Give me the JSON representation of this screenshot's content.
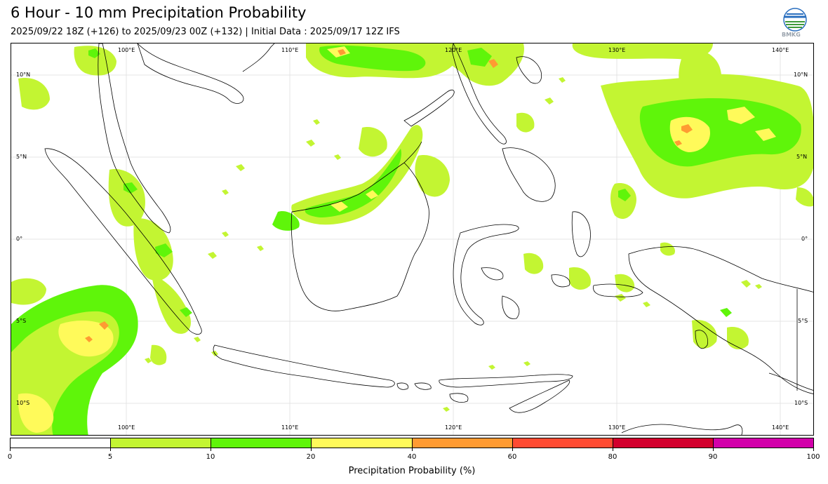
{
  "header": {
    "title": "6 Hour - 10 mm Precipitation Probability",
    "subtitle": "2025/09/22 18Z (+126) to 2025/09/23 00Z (+132) | Initial Data : 2025/09/17 12Z IFS"
  },
  "logo": {
    "text": "BMKG",
    "icon": "bmkg-logo-icon"
  },
  "map": {
    "lon_labels": [
      "100°E",
      "110°E",
      "120°E",
      "130°E",
      "140°E"
    ],
    "lat_labels": [
      "10°N",
      "5°N",
      "0°",
      "5°S",
      "10°S"
    ],
    "extent": {
      "lon": [
        93,
        142
      ],
      "lat": [
        -12,
        12
      ]
    }
  },
  "colorbar": {
    "label": "Precipitation Probability (%)",
    "ticks": [
      "0",
      "5",
      "10",
      "20",
      "40",
      "60",
      "80",
      "90",
      "100"
    ],
    "colors": [
      "#ffffff",
      "#c3f532",
      "#5ff50a",
      "#fffa5a",
      "#ff9b32",
      "#ff4b32",
      "#d2002d",
      "#d200aa"
    ]
  }
}
